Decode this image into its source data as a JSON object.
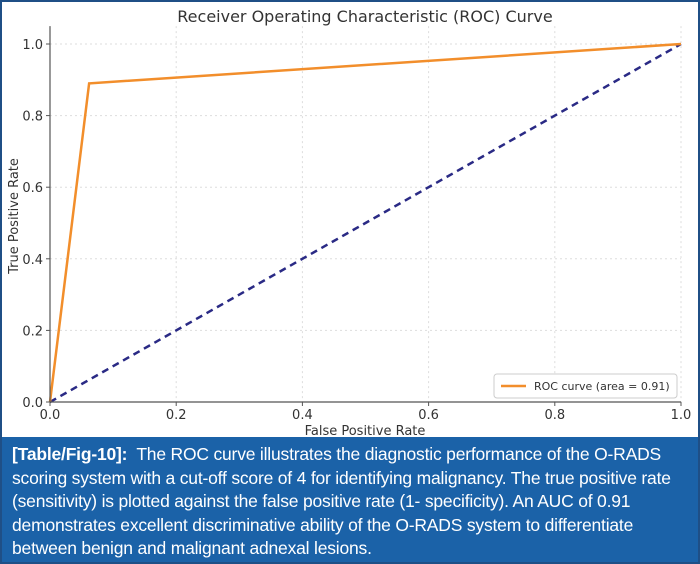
{
  "chart_data": {
    "type": "line",
    "title": "Receiver Operating Characteristic (ROC) Curve",
    "xlabel": "False Positive Rate",
    "ylabel": "True Positive Rate",
    "xlim": [
      0,
      1
    ],
    "ylim": [
      0,
      1.05
    ],
    "xticks": [
      "0.0",
      "0.2",
      "0.4",
      "0.6",
      "0.8",
      "1.0"
    ],
    "yticks": [
      "0.0",
      "0.2",
      "0.4",
      "0.6",
      "0.8",
      "1.0"
    ],
    "grid": true,
    "legend_position": "bottom-right",
    "series": [
      {
        "name": "ROC curve (area = 0.91)",
        "color": "#f28e2b",
        "style": "solid",
        "x": [
          0,
          0.062,
          1
        ],
        "y": [
          0,
          0.89,
          1
        ]
      },
      {
        "color": "#2a2a85",
        "style": "dashed",
        "x": [
          0,
          1
        ],
        "y": [
          0,
          1
        ]
      }
    ]
  },
  "caption": {
    "label": "[Table/Fig-10]:",
    "text": "The ROC curve illustrates the diagnostic performance of the O-RADS scoring system with a cut-off score of 4 for identifying malignancy. The true positive rate (sensitivity) is plotted against the false positive rate (1- specificity). An AUC of 0.91 demonstrates excellent discriminative ability of the O-RADS system to differentiate between benign and malignant adnexal lesions."
  }
}
